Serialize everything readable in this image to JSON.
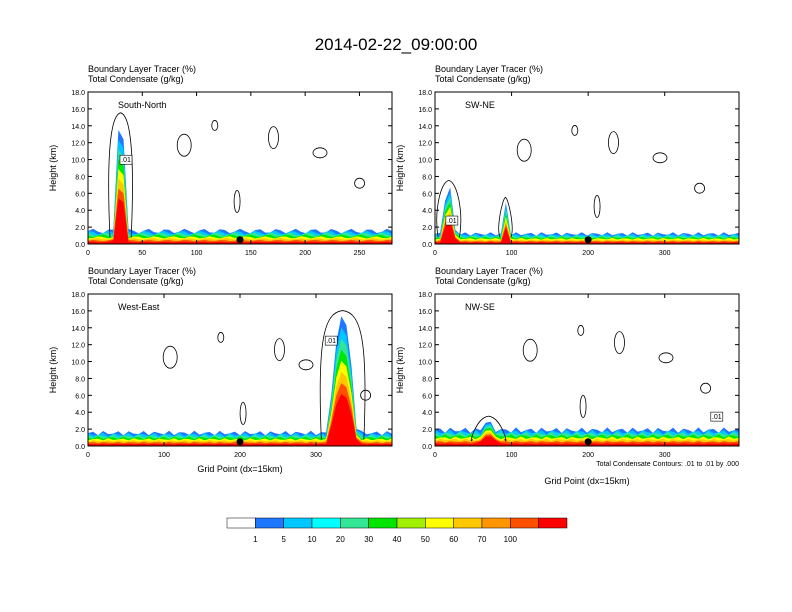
{
  "page_title": "2014-02-22_09:00:00",
  "chart_data": [
    {
      "type": "heatmap",
      "panel_label": "South-North",
      "title_lines": [
        "Boundary Layer Tracer   (%)",
        "Total Condensate   (g/kg)"
      ],
      "ylabel": "Height (km)",
      "xlabel": "",
      "ylim": [
        0,
        18
      ],
      "xlim": [
        0,
        280
      ],
      "y_ticks": [
        0.0,
        2.0,
        4.0,
        6.0,
        8.0,
        10.0,
        12.0,
        14.0,
        16.0,
        18.0
      ],
      "y_tick_labels": [
        "0.0",
        "2.0",
        "4.0",
        "6.0",
        "8.0",
        "10.0",
        "12.0",
        "14.0",
        "16.0",
        "18.0"
      ],
      "x_ticks": [
        0,
        50,
        100,
        150,
        200,
        250
      ],
      "x_tick_labels": [
        "0",
        "50",
        "100",
        "150",
        "200",
        "250"
      ],
      "marker_x": 140,
      "contour_label": ".01",
      "contour_label_pos": [
        35,
        9.8
      ],
      "plumes": [
        {
          "x": 30,
          "w": 14,
          "top": 15.0
        }
      ],
      "pbl_height": 1.8
    },
    {
      "type": "heatmap",
      "panel_label": "SW-NE",
      "title_lines": [
        "Boundary Layer Tracer   (%)",
        "Total Condensate   (g/kg)"
      ],
      "ylabel": "Height (km)",
      "xlabel": "",
      "ylim": [
        0,
        18
      ],
      "xlim": [
        0,
        397
      ],
      "y_ticks": [
        0.0,
        2.0,
        4.0,
        6.0,
        8.0,
        10.0,
        12.0,
        14.0,
        16.0,
        18.0
      ],
      "y_tick_labels": [
        "0.0",
        "2.0",
        "4.0",
        "6.0",
        "8.0",
        "10.0",
        "12.0",
        "14.0",
        "16.0",
        "18.0"
      ],
      "x_ticks": [
        0,
        100,
        200,
        300
      ],
      "x_tick_labels": [
        "0",
        "100",
        "200",
        "300"
      ],
      "marker_x": 200,
      "contour_label": ".01",
      "contour_label_pos": [
        22,
        2.6
      ],
      "plumes": [
        {
          "x": 18,
          "w": 20,
          "top": 7.0
        },
        {
          "x": 92,
          "w": 10,
          "top": 5.0
        }
      ],
      "pbl_height": 1.4
    },
    {
      "type": "heatmap",
      "panel_label": "West-East",
      "title_lines": [
        "Boundary Layer Tracer   (%)",
        "Total Condensate   (g/kg)"
      ],
      "ylabel": "Height (km)",
      "xlabel": "Grid Point (dx=15km)",
      "ylim": [
        0,
        18
      ],
      "xlim": [
        0,
        400
      ],
      "y_ticks": [
        0.0,
        2.0,
        4.0,
        6.0,
        8.0,
        10.0,
        12.0,
        14.0,
        16.0,
        18.0
      ],
      "y_tick_labels": [
        "0.0",
        "2.0",
        "4.0",
        "6.0",
        "8.0",
        "10.0",
        "12.0",
        "14.0",
        "16.0",
        "18.0"
      ],
      "x_ticks": [
        0,
        100,
        200,
        300
      ],
      "x_tick_labels": [
        "0",
        "100",
        "200",
        "300"
      ],
      "marker_x": 200,
      "contour_label": ".01",
      "contour_label_pos": [
        320,
        12.3
      ],
      "plumes": [
        {
          "x": 335,
          "w": 40,
          "top": 15.5
        }
      ],
      "pbl_height": 1.8
    },
    {
      "type": "heatmap",
      "panel_label": "NW-SE",
      "title_lines": [
        "Boundary Layer Tracer   (%)",
        "Total Condensate   (g/kg)"
      ],
      "ylabel": "Height (km)",
      "xlabel": "Grid Point (dx=15km)",
      "ylim": [
        0,
        18
      ],
      "xlim": [
        0,
        397
      ],
      "y_ticks": [
        0.0,
        2.0,
        4.0,
        6.0,
        8.0,
        10.0,
        12.0,
        14.0,
        16.0,
        18.0
      ],
      "y_tick_labels": [
        "0.0",
        "2.0",
        "4.0",
        "6.0",
        "8.0",
        "10.0",
        "12.0",
        "14.0",
        "16.0",
        "18.0"
      ],
      "x_ticks": [
        0,
        100,
        200,
        300
      ],
      "x_tick_labels": [
        "0",
        "100",
        "200",
        "300"
      ],
      "marker_x": 200,
      "contour_label": ".01",
      "contour_label_pos": [
        368,
        3.3
      ],
      "plumes": [
        {
          "x": 70,
          "w": 30,
          "top": 3.0
        }
      ],
      "pbl_height": 2.2,
      "footnote": "Total Condensate Contours: .01 to .01 by .000"
    }
  ],
  "colorbar": {
    "labels": [
      "1",
      "5",
      "10",
      "20",
      "30",
      "40",
      "50",
      "60",
      "70",
      "100"
    ],
    "colors": [
      "#ffffff",
      "#1e78ff",
      "#00c8ff",
      "#00ffff",
      "#32e696",
      "#00e600",
      "#a0f000",
      "#ffff00",
      "#ffc800",
      "#ff9600",
      "#ff5000",
      "#ff0000"
    ]
  }
}
